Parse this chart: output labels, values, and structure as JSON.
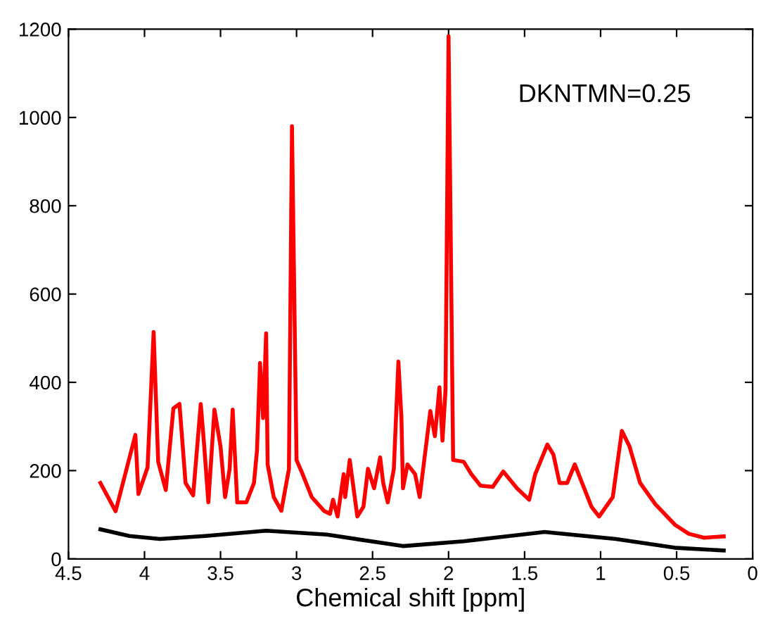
{
  "chart_data": {
    "type": "line",
    "xlabel": "Chemical shift [ppm]",
    "annotations": [
      "DKNTMN=0.25"
    ],
    "xlim": [
      4.5,
      0
    ],
    "xticks": [
      4.5,
      4,
      3.5,
      3,
      2.5,
      2,
      1.5,
      1,
      0.5,
      0
    ],
    "ylim": [
      0,
      1200
    ],
    "yticks": [
      0,
      200,
      400,
      600,
      800,
      1000,
      1200
    ],
    "grid": false,
    "legend": false,
    "marker": "none",
    "line_style": "solid",
    "series": [
      {
        "color": "#ff0000",
        "x": [
          4.29,
          4.19,
          4.06,
          4.04,
          3.98,
          3.94,
          3.91,
          3.86,
          3.81,
          3.77,
          3.73,
          3.68,
          3.63,
          3.61,
          3.58,
          3.54,
          3.5,
          3.47,
          3.44,
          3.42,
          3.39,
          3.33,
          3.28,
          3.26,
          3.24,
          3.22,
          3.2,
          3.19,
          3.15,
          3.1,
          3.05,
          3.03,
          3.0,
          2.96,
          2.9,
          2.82,
          2.78,
          2.76,
          2.73,
          2.69,
          2.68,
          2.65,
          2.6,
          2.56,
          2.53,
          2.49,
          2.45,
          2.43,
          2.4,
          2.36,
          2.33,
          2.31,
          2.3,
          2.27,
          2.22,
          2.19,
          2.12,
          2.09,
          2.06,
          2.04,
          2.02,
          2.0,
          1.97,
          1.9,
          1.85,
          1.79,
          1.71,
          1.64,
          1.55,
          1.47,
          1.43,
          1.35,
          1.31,
          1.27,
          1.22,
          1.17,
          1.06,
          1.01,
          0.92,
          0.86,
          0.81,
          0.74,
          0.64,
          0.51,
          0.42,
          0.32,
          0.19
        ],
        "values": [
          172,
          108,
          281,
          147,
          207,
          514,
          220,
          156,
          341,
          351,
          172,
          144,
          351,
          268,
          128,
          338,
          255,
          140,
          204,
          338,
          128,
          128,
          172,
          246,
          444,
          319,
          511,
          214,
          140,
          109,
          204,
          980,
          224,
          192,
          140,
          109,
          102,
          134,
          96,
          192,
          140,
          224,
          96,
          118,
          204,
          160,
          230,
          172,
          128,
          204,
          447,
          319,
          160,
          214,
          192,
          140,
          335,
          278,
          389,
          268,
          383,
          1184,
          224,
          220,
          192,
          166,
          163,
          198,
          160,
          134,
          192,
          259,
          236,
          172,
          172,
          214,
          118,
          96,
          140,
          290,
          255,
          172,
          124,
          77,
          57,
          48,
          51
        ]
      },
      {
        "color": "#000000",
        "x": [
          4.29,
          4.1,
          3.9,
          3.6,
          3.2,
          2.8,
          2.3,
          1.9,
          1.37,
          0.9,
          0.5,
          0.19
        ],
        "values": [
          67,
          52,
          45,
          52,
          64,
          55,
          29,
          40,
          61,
          45,
          25,
          19
        ]
      }
    ]
  }
}
